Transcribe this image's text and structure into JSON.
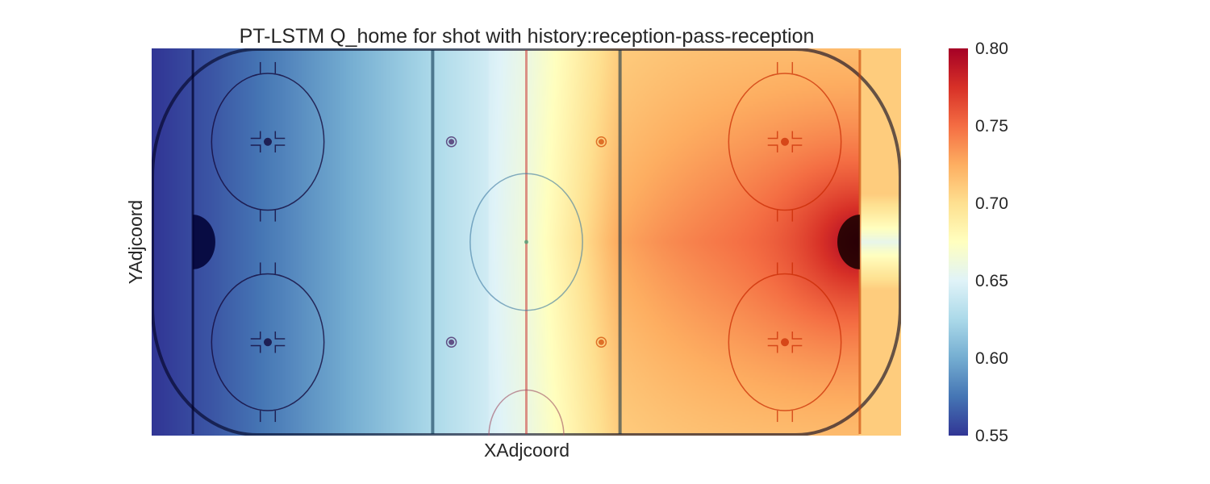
{
  "chart_data": {
    "type": "heatmap",
    "title": "PT-LSTM Q_home for shot with history:reception-pass-reception",
    "xlabel": "XAdjcoord",
    "ylabel": "YAdjcoord",
    "colorbar": {
      "colormap": "RdYlBu_r",
      "range": [
        0.55,
        0.8
      ],
      "ticks": [
        "0.80",
        "0.75",
        "0.70",
        "0.65",
        "0.60",
        "0.55"
      ],
      "stops": [
        "#313695",
        "#4575b4",
        "#74add1",
        "#abd9e9",
        "#e0f3f8",
        "#ffffbf",
        "#fee090",
        "#fdae61",
        "#f46d43",
        "#d73027",
        "#a50026"
      ]
    },
    "x_domain": [
      -100,
      100
    ],
    "y_domain": [
      -42.5,
      42.5
    ],
    "value_field": {
      "left_edge": 0.55,
      "center_line": 0.655,
      "right_blue_line": 0.7,
      "right_net_peak": 0.8,
      "behind_right_net": 0.655,
      "right_end_boards": 0.71
    },
    "rink": {
      "description_markings": [
        "center-line",
        "blue-lines",
        "goal-lines",
        "creases",
        "faceoff-circles",
        "neutral-zone-dots",
        "center-circle",
        "referee-crease"
      ]
    }
  }
}
